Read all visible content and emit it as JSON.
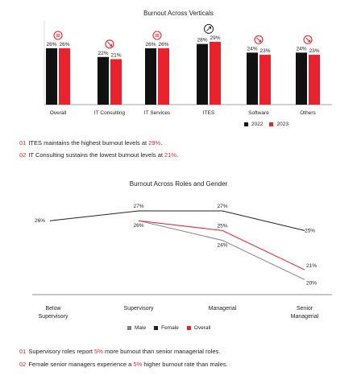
{
  "colors": {
    "y2022": "#111111",
    "y2023": "#e8232e",
    "male": "#808080",
    "female": "#222222",
    "overall": "#e8232e"
  },
  "chart_data": [
    {
      "type": "bar",
      "title": "Burnout Across Verticals",
      "categories": [
        "Overall",
        "IT Consulting",
        "IT Services",
        "ITES",
        "Software",
        "Others"
      ],
      "series": [
        {
          "name": "2022",
          "values": [
            26,
            22,
            26,
            28,
            24,
            24
          ]
        },
        {
          "name": "2023",
          "values": [
            26,
            21,
            26,
            29,
            23,
            23
          ]
        }
      ],
      "value_labels": {
        "2022": [
          "26%",
          "22%",
          "26%",
          "28%",
          "24%",
          "24%"
        ],
        "2023": [
          "26%",
          "21%",
          "26%",
          "29%",
          "23%",
          "23%"
        ]
      },
      "trend_icons": [
        "equal-icon",
        "decrease-icon",
        "equal-icon",
        "increase-icon",
        "decrease-icon",
        "decrease-icon"
      ],
      "legend": [
        "2022",
        "2023"
      ],
      "legend_position": "bottom-right"
    },
    {
      "type": "line",
      "title": "Burnout Across Roles and Gender",
      "categories": [
        "Below Supervisory",
        "Supervisory",
        "Managerial",
        "Senior Managerial"
      ],
      "series": [
        {
          "name": "Male",
          "values": [
            null,
            26,
            24,
            20
          ]
        },
        {
          "name": "Female",
          "values": [
            26,
            27,
            27,
            25
          ]
        },
        {
          "name": "Overall",
          "values": [
            null,
            26,
            25,
            21
          ]
        }
      ],
      "point_labels": {
        "Male": [
          null,
          "26%",
          "24%",
          "20%"
        ],
        "Female": [
          "26%",
          "27%",
          "27%",
          "25%"
        ],
        "Overall": [
          null,
          null,
          "25%",
          "21%"
        ]
      },
      "legend": [
        "Male",
        "Female",
        "Overall"
      ],
      "legend_position": "bottom-center"
    }
  ],
  "notes_verticals": [
    {
      "num": "01",
      "pre": "ITES maintains the highest burnout levels at ",
      "hl": "29%",
      "post": "."
    },
    {
      "num": "02",
      "pre": "IT Consulting sustains the lowest burnout levels at ",
      "hl": "21%",
      "post": "."
    }
  ],
  "notes_roles": [
    {
      "num": "01",
      "pre": "Supervisory roles report ",
      "hl": "5%",
      "post": " more burnout than senior managerial roles."
    },
    {
      "num": "02",
      "pre": "Female senior managers experience a ",
      "hl": "5%",
      "post": " higher burnout rate than males."
    }
  ]
}
